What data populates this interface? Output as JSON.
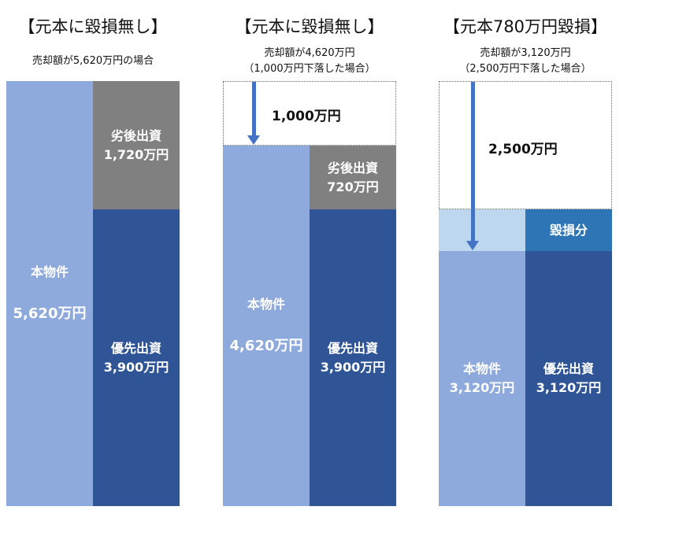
{
  "panels": [
    {
      "title": "【元本に毀損無し】",
      "subtitle_lines": [
        "売却額が5,620万円の場合"
      ],
      "property_label": "本物件",
      "property_value": "5,620万円",
      "subordinate_label": "劣後出資",
      "subordinate_value": "1,720万円",
      "senior_label": "優先出資",
      "senior_value": "3,900万円"
    },
    {
      "title": "【元本に毀損無し】",
      "subtitle_lines": [
        "売却額が4,620万円",
        "（1,000万円下落した場合）"
      ],
      "drop_label": "1,000万円",
      "property_label": "本物件",
      "property_value": "4,620万円",
      "subordinate_label": "劣後出資",
      "subordinate_value": "720万円",
      "senior_label": "優先出資",
      "senior_value": "3,900万円"
    },
    {
      "title": "【元本780万円毀損】",
      "subtitle_lines": [
        "売却額が3,120万円",
        "（2,500万円下落した場合）"
      ],
      "drop_label": "2,500万円",
      "loss_label": "毀損分",
      "property_label": "本物件",
      "property_value": "3,120万円",
      "senior_label": "優先出資",
      "senior_value": "3,120万円"
    }
  ],
  "colors": {
    "property": "#8ea9db",
    "senior": "#2f5597",
    "subordinate": "#808080",
    "loss": "#2e75b6",
    "lost_property": "#bdd7ee",
    "arrow": "#4472c4"
  }
}
